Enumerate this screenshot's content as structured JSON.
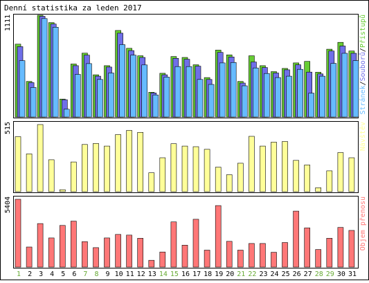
{
  "title": "Denní statistika za leden 2017",
  "days": [
    "1",
    "2",
    "3",
    "4",
    "5",
    "6",
    "7",
    "8",
    "9",
    "10",
    "11",
    "12",
    "13",
    "14",
    "15",
    "16",
    "17",
    "18",
    "19",
    "20",
    "21",
    "22",
    "23",
    "24",
    "25",
    "26",
    "27",
    "28",
    "29",
    "30",
    "31"
  ],
  "weekend_days": [
    1,
    7,
    8,
    14,
    15,
    21,
    22,
    28,
    29
  ],
  "colors": {
    "background": "#ffffff",
    "border": "#000000",
    "hits": "#66cc33",
    "files": "#6f6fe8",
    "pages": "#66bbff",
    "visits": "#ffff99",
    "volume": "#ff7777",
    "weekend_label": "#66aa33",
    "weekday_label": "#000000"
  },
  "chart_data": [
    {
      "type": "bar",
      "name": "top",
      "ymax_label": "1111",
      "ylim": [
        0,
        1111
      ],
      "legend": {
        "pages": "Stránek",
        "files": "Souborů",
        "hits": "Přístupů",
        "sep": "/"
      },
      "series": [
        {
          "key": "hits",
          "values": [
            795,
            388,
            1111,
            1030,
            195,
            578,
            697,
            460,
            560,
            945,
            750,
            668,
            270,
            477,
            660,
            650,
            570,
            430,
            730,
            678,
            388,
            668,
            560,
            495,
            530,
            590,
            607,
            488,
            740,
            815,
            720
          ]
        },
        {
          "key": "files",
          "values": [
            768,
            375,
            1100,
            1015,
            188,
            560,
            675,
            445,
            545,
            915,
            725,
            650,
            262,
            460,
            640,
            630,
            555,
            410,
            705,
            655,
            370,
            600,
            540,
            480,
            515,
            570,
            490,
            470,
            720,
            775,
            695
          ]
        },
        {
          "key": "pages",
          "values": [
            615,
            322,
            1075,
            980,
            85,
            465,
            583,
            410,
            480,
            790,
            675,
            568,
            240,
            435,
            550,
            550,
            410,
            355,
            590,
            595,
            340,
            535,
            475,
            430,
            445,
            520,
            260,
            445,
            585,
            695,
            615
          ]
        }
      ]
    },
    {
      "type": "bar",
      "name": "middle",
      "ymax_label": "515",
      "ylim": [
        0,
        515
      ],
      "legend": {
        "visits": "Návštěv"
      },
      "series": [
        {
          "key": "visits",
          "values": [
            422,
            290,
            515,
            245,
            15,
            228,
            362,
            370,
            350,
            438,
            470,
            455,
            145,
            260,
            368,
            350,
            345,
            325,
            188,
            130,
            218,
            425,
            350,
            380,
            385,
            240,
            205,
            30,
            160,
            300,
            260
          ]
        }
      ]
    },
    {
      "type": "bar",
      "name": "bottom",
      "ymax_label": "5404",
      "ylim": [
        0,
        5404
      ],
      "legend": {
        "volume": "Objem přenosu"
      },
      "series": [
        {
          "key": "volume",
          "values": [
            5404,
            1600,
            3470,
            2320,
            3320,
            3660,
            2030,
            1550,
            2320,
            2600,
            2550,
            2300,
            540,
            1200,
            3600,
            1750,
            3810,
            1350,
            4900,
            2050,
            1350,
            1880,
            1880,
            1180,
            1960,
            4460,
            3120,
            1400,
            2300,
            3160,
            2920
          ]
        }
      ]
    }
  ]
}
